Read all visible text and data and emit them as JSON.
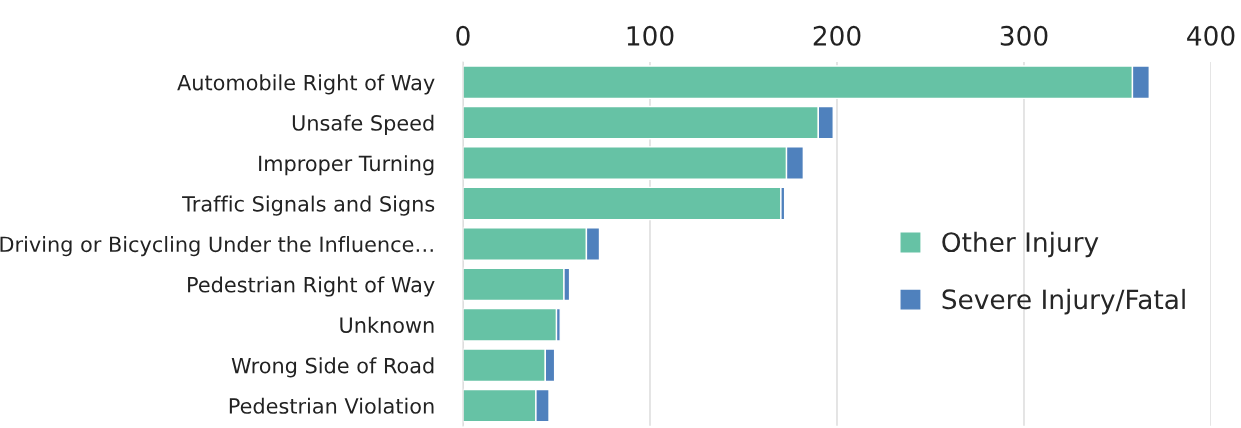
{
  "chart_data": {
    "type": "bar",
    "orientation": "horizontal",
    "stacked": true,
    "categories": [
      "Automobile Right of Way",
      "Unsafe Speed",
      "Improper Turning",
      "Traffic Signals and Signs",
      "Driving or Bicycling Under the Influence…",
      "Pedestrian Right of Way",
      "Unknown",
      "Wrong Side of Road",
      "Pedestrian Violation"
    ],
    "series": [
      {
        "name": "Other Injury",
        "color": "#66c2a5",
        "values": [
          358,
          190,
          173,
          170,
          66,
          54,
          50,
          44,
          39
        ]
      },
      {
        "name": "Severe Injury/Fatal",
        "color": "#4f81bd",
        "values": [
          9,
          8,
          9,
          2,
          7,
          3,
          2,
          5,
          7
        ]
      }
    ],
    "xlim": [
      0,
      400
    ],
    "xticks": [
      0,
      100,
      200,
      300,
      400
    ],
    "grid": "x",
    "legend": "right"
  }
}
